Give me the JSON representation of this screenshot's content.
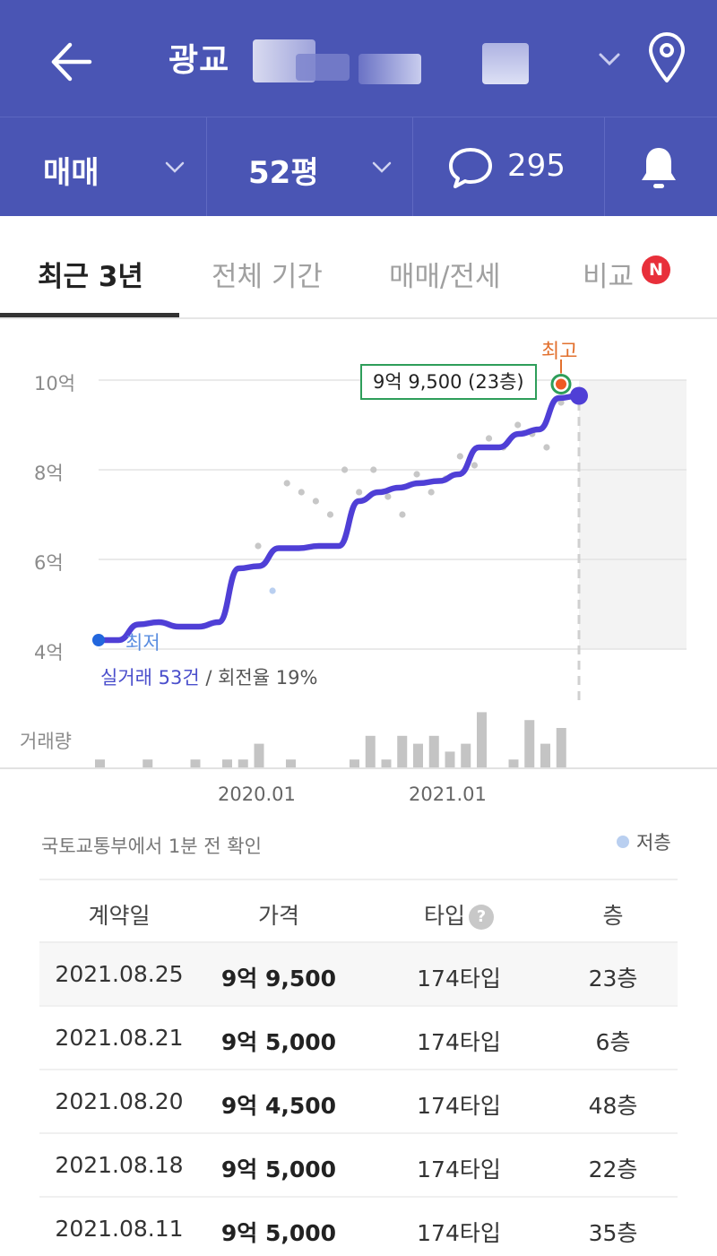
{
  "header": {
    "title": "광교 ",
    "back_icon": "arrow-left-icon",
    "dropdown_icon": "chevron-down-icon",
    "location_icon": "map-pin-icon",
    "bg_color": "#4a55b4"
  },
  "subbar": {
    "trade_type": "매매",
    "area": "52평",
    "comment_count": "295",
    "comment_icon": "speech-bubble-icon",
    "alarm_icon": "bell-icon"
  },
  "tabs": [
    {
      "label": "최근 3년",
      "active": true
    },
    {
      "label": "전체 기간",
      "active": false
    },
    {
      "label": "매매/전세",
      "active": false
    },
    {
      "label": "비교",
      "active": false,
      "badge": "N"
    }
  ],
  "chart_data": {
    "type": "line",
    "y_tick_labels": [
      "10억",
      "8억",
      "6억",
      "4억"
    ],
    "ylim": [
      4.0,
      10.0
    ],
    "y_unit": "억",
    "x_tick_labels": [
      "2020.01",
      "2021.01"
    ],
    "series": [
      {
        "values": [
          4.2,
          4.2,
          4.55,
          4.6,
          4.5,
          4.5,
          4.6,
          5.8,
          5.85,
          6.25,
          6.25,
          6.3,
          6.3,
          7.3,
          7.5,
          7.6,
          7.7,
          7.75,
          7.9,
          8.5,
          8.5,
          8.8,
          8.9,
          9.6,
          9.65
        ],
        "color": "#4f3fd6"
      }
    ],
    "scatter_values": [
      6.3,
      5.3,
      7.7,
      7.5,
      7.3,
      7.0,
      8.0,
      7.5,
      8.0,
      7.4,
      7.0,
      7.9,
      7.5,
      7.8,
      8.3,
      8.1,
      8.7,
      8.5,
      9.0,
      8.8,
      8.5,
      9.5
    ],
    "highlight": {
      "label": "최고",
      "tooltip": "9억 9,500 (23층)",
      "value": 9.95
    },
    "low": {
      "label": "최저",
      "value": 4.2
    },
    "summary_prefix": "실거래 53건",
    "summary_suffix": " / 회전율 19%",
    "volume_label": "거래량",
    "volume": [
      1,
      0,
      0,
      1,
      0,
      0,
      1,
      0,
      1,
      1,
      3,
      0,
      1,
      0,
      0,
      0,
      1,
      4,
      1,
      4,
      3,
      4,
      2,
      3,
      7,
      0,
      1,
      6,
      3,
      5
    ]
  },
  "source_text": "국토교통부에서 1분 전 확인",
  "legend_low_floor": "저층",
  "table": {
    "headers": [
      "계약일",
      "가격",
      "타입",
      "층"
    ],
    "help_icon": "question-circle-icon",
    "rows": [
      {
        "date": "2021.08.25",
        "price": "9억 9,500",
        "type": "174타입",
        "floor": "23층"
      },
      {
        "date": "2021.08.21",
        "price": "9억 5,000",
        "type": "174타입",
        "floor": "6층"
      },
      {
        "date": "2021.08.20",
        "price": "9억 4,500",
        "type": "174타입",
        "floor": "48층"
      },
      {
        "date": "2021.08.18",
        "price": "9억 5,000",
        "type": "174타입",
        "floor": "22층"
      },
      {
        "date": "2021.08.11",
        "price": "9억 5,000",
        "type": "174타입",
        "floor": "35층"
      }
    ]
  }
}
